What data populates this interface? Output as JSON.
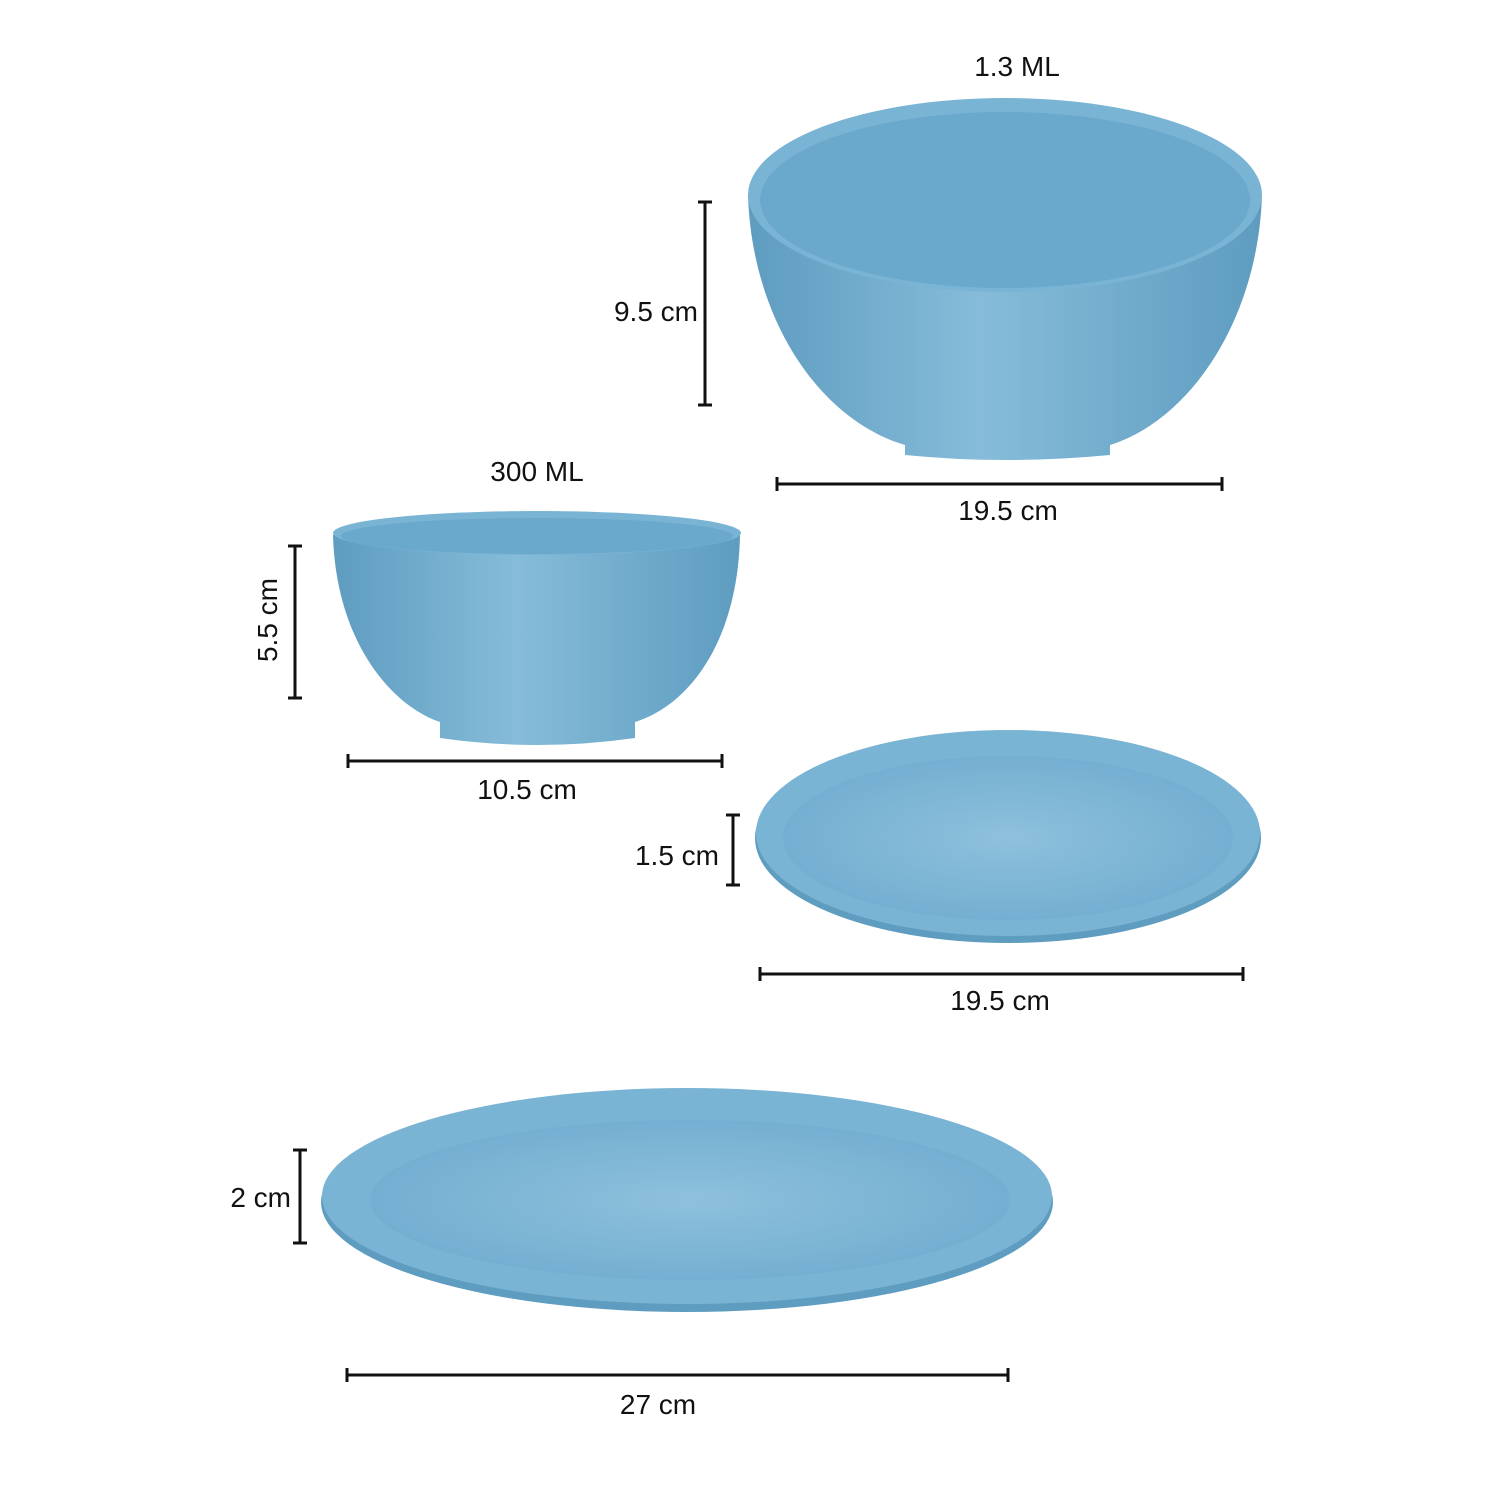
{
  "colors": {
    "product": "#7ab4d4",
    "product_shadow": "#5e9cc0",
    "product_inner": "#8cc0dc",
    "dimension_line": "#111111"
  },
  "items": [
    {
      "name": "large-bowl",
      "capacity": "1.3 ML",
      "height": "9.5 cm",
      "width": "19.5 cm"
    },
    {
      "name": "small-bowl",
      "capacity": "300 ML",
      "height": "5.5 cm",
      "width": "10.5 cm"
    },
    {
      "name": "quarter-plate",
      "height": "1.5 cm",
      "width": "19.5 cm"
    },
    {
      "name": "dinner-plate",
      "height": "2 cm",
      "width": "27 cm"
    }
  ]
}
